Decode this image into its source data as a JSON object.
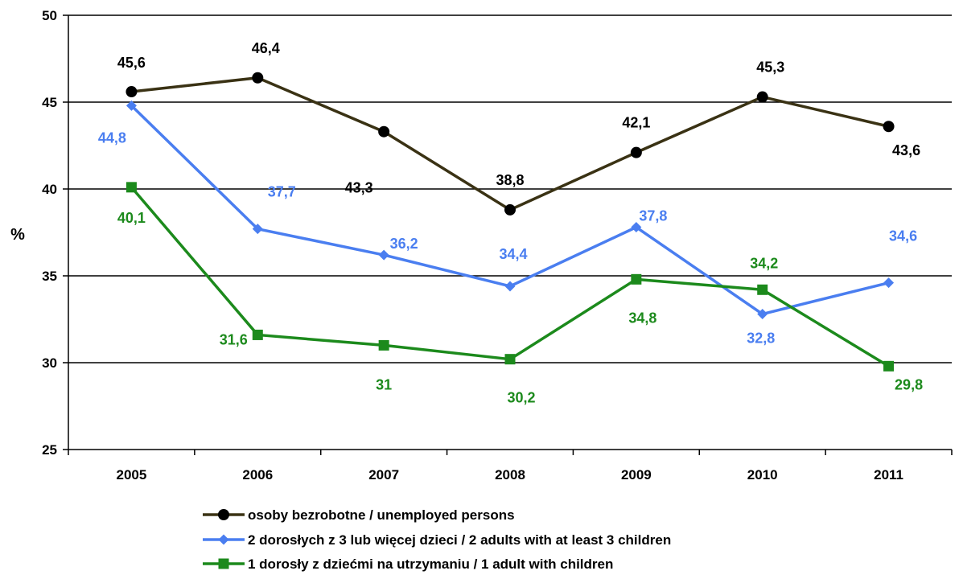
{
  "chart_data": {
    "type": "line",
    "categories": [
      "2005",
      "2006",
      "2007",
      "2008",
      "2009",
      "2010",
      "2011"
    ],
    "ylabel": "%",
    "ylim": [
      25,
      50
    ],
    "yticks": [
      25,
      30,
      35,
      40,
      45,
      50
    ],
    "grid": true,
    "legend_position": "bottom",
    "series": [
      {
        "name": "osoby bezrobotne / unemployed persons",
        "values": [
          45.6,
          46.4,
          43.3,
          38.8,
          42.1,
          45.3,
          43.6
        ],
        "labels": [
          "45,6",
          "46,4",
          "43,3",
          "38,8",
          "42,1",
          "45,3",
          "43,6"
        ],
        "color": "#3a3214",
        "label_color": "#000000",
        "marker": "circle"
      },
      {
        "name": "2 dorosłych z 3 lub więcej dzieci / 2 adults with at least 3 children",
        "values": [
          44.8,
          37.7,
          36.2,
          34.4,
          37.8,
          32.8,
          34.6
        ],
        "labels": [
          "44,8",
          "37,7",
          "36,2",
          "34,4",
          "37,8",
          "32,8",
          "34,6"
        ],
        "color": "#4a7ef0",
        "label_color": "#4a7ef0",
        "marker": "diamond"
      },
      {
        "name": "1 dorosły z dziećmi na utrzymaniu / 1 adult with children",
        "values": [
          40.1,
          31.6,
          31,
          30.2,
          34.8,
          34.2,
          29.8
        ],
        "labels": [
          "40,1",
          "31,6",
          "31",
          "30,2",
          "34,8",
          "34,2",
          "29,8"
        ],
        "color": "#1c8a1c",
        "label_color": "#1c8a1c",
        "marker": "square"
      }
    ]
  }
}
